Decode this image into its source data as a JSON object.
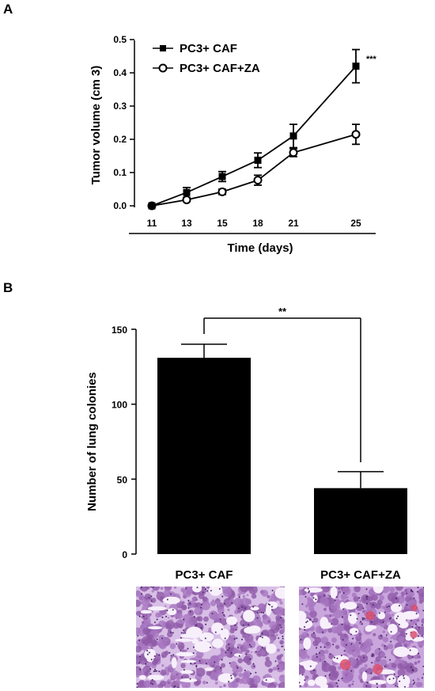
{
  "panels": {
    "a_label": "A",
    "b_label": "B"
  },
  "chart_data": [
    {
      "type": "line",
      "title": "",
      "xlabel": "Time (days)",
      "ylabel": "Tumor volume (cm 3)",
      "x": [
        11,
        13,
        15,
        18,
        21,
        25
      ],
      "x_ticks": [
        "11",
        "13",
        "15",
        "18",
        "21",
        "25"
      ],
      "ylim": [
        0.0,
        0.5
      ],
      "y_ticks": [
        "0.0",
        "0.1",
        "0.2",
        "0.3",
        "0.4",
        "0.5"
      ],
      "legend_position": "top-left",
      "series": [
        {
          "name": "PC3+ CAF",
          "marker": "filled-square",
          "values": [
            0.0,
            0.04,
            0.088,
            0.137,
            0.21,
            0.42
          ],
          "errors": [
            0.0,
            0.015,
            0.015,
            0.022,
            0.035,
            0.05
          ]
        },
        {
          "name": "PC3+ CAF+ZA",
          "marker": "open-circle",
          "values": [
            0.0,
            0.018,
            0.042,
            0.077,
            0.16,
            0.215
          ],
          "errors": [
            0.0,
            0.005,
            0.008,
            0.015,
            0.012,
            0.03
          ]
        }
      ],
      "annotations": [
        {
          "text": "***",
          "at_x": 25
        }
      ]
    },
    {
      "type": "bar",
      "title": "",
      "xlabel": "",
      "ylabel": "Number of lung colonies",
      "categories": [
        "PC3+ CAF",
        "PC3+ CAF+ZA"
      ],
      "values": [
        131,
        44
      ],
      "errors": [
        9,
        11
      ],
      "ylim": [
        0,
        150
      ],
      "y_ticks": [
        "0",
        "50",
        "100",
        "150"
      ],
      "bar_color": "#000000",
      "annotations": [
        {
          "text": "**",
          "between": [
            "PC3+ CAF",
            "PC3+ CAF+ZA"
          ]
        }
      ]
    }
  ]
}
